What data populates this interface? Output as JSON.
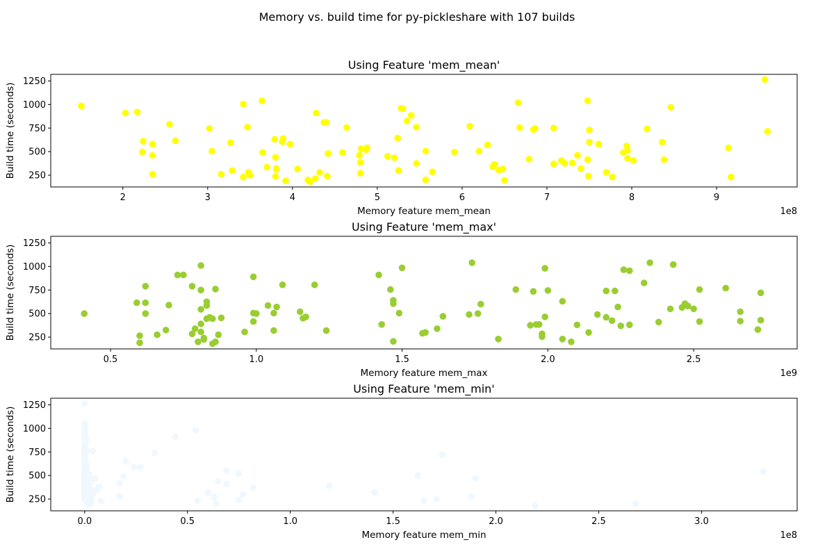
{
  "figure_title": "Memory vs. build time for py-pickleshare with 107 builds",
  "chart_data": [
    {
      "type": "scatter",
      "title": "Using Feature 'mem_mean'",
      "xlabel": "Memory feature mem_mean",
      "ylabel": "Build time (seconds)",
      "x_offset_label": "1e8",
      "x_scale": 100000000,
      "xlim": [
        1.15,
        9.95
      ],
      "ylim": [
        125,
        1320
      ],
      "xticks": [
        2,
        3,
        4,
        5,
        6,
        7,
        8,
        9
      ],
      "xtick_labels": [
        "2",
        "3",
        "4",
        "5",
        "6",
        "7",
        "8",
        "9"
      ],
      "yticks": [
        250,
        500,
        750,
        1000,
        1250
      ],
      "ytick_labels": [
        "250",
        "500",
        "750",
        "1000",
        "1250"
      ],
      "color": "#ffff00",
      "grid": false,
      "x": [
        1.51,
        2.03,
        2.17,
        2.24,
        2.23,
        2.35,
        2.35,
        2.35,
        2.55,
        2.62,
        3.02,
        3.05,
        3.16,
        3.27,
        3.29,
        3.42,
        3.42,
        3.47,
        3.48,
        3.5,
        3.65,
        3.64,
        3.7,
        3.79,
        3.8,
        3.8,
        3.81,
        3.81,
        3.88,
        3.89,
        3.92,
        3.97,
        4.06,
        4.18,
        4.21,
        4.27,
        4.28,
        4.32,
        4.37,
        4.4,
        4.41,
        4.42,
        4.42,
        4.59,
        4.64,
        4.79,
        4.8,
        4.8,
        4.81,
        4.87,
        4.88,
        5.12,
        5.2,
        5.24,
        5.25,
        5.28,
        5.3,
        5.35,
        5.4,
        5.46,
        5.46,
        5.57,
        5.57,
        5.65,
        5.91,
        6.09,
        6.2,
        6.3,
        6.36,
        6.38,
        6.43,
        6.48,
        6.5,
        6.66,
        6.68,
        6.79,
        6.84,
        6.86,
        7.08,
        7.08,
        7.17,
        7.21,
        7.3,
        7.36,
        7.4,
        7.48,
        7.5,
        7.49,
        7.48,
        7.5,
        7.61,
        7.7,
        7.77,
        7.9,
        7.94,
        7.95,
        7.95,
        8.02,
        8.18,
        8.36,
        8.38,
        8.46,
        9.14,
        9.17,
        9.57,
        9.6,
        1.51
      ],
      "y": [
        985,
        910,
        920,
        610,
        495,
        580,
        460,
        260,
        790,
        615,
        745,
        505,
        260,
        595,
        300,
        230,
        1005,
        760,
        280,
        250,
        490,
        1040,
        335,
        630,
        235,
        440,
        320,
        310,
        605,
        640,
        190,
        580,
        315,
        200,
        180,
        215,
        910,
        280,
        810,
        810,
        240,
        480,
        480,
        490,
        755,
        460,
        385,
        270,
        530,
        520,
        540,
        450,
        435,
        645,
        300,
        960,
        955,
        825,
        885,
        760,
        375,
        505,
        200,
        285,
        495,
        770,
        505,
        570,
        340,
        365,
        305,
        315,
        195,
        1020,
        755,
        420,
        735,
        745,
        370,
        750,
        405,
        375,
        380,
        460,
        320,
        1040,
        730,
        240,
        415,
        600,
        580,
        280,
        230,
        490,
        560,
        510,
        430,
        405,
        740,
        600,
        415,
        970,
        540,
        230,
        1265,
        715,
        985
      ]
    },
    {
      "type": "scatter",
      "title": "Using Feature 'mem_max'",
      "xlabel": "Memory feature mem_max",
      "ylabel": "Build time (seconds)",
      "x_offset_label": "1e9",
      "x_scale": 1000000000,
      "xlim": [
        0.295,
        2.855
      ],
      "ylim": [
        125,
        1320
      ],
      "xticks": [
        0.5,
        1.0,
        1.5,
        2.0,
        2.5
      ],
      "xtick_labels": [
        "0.5",
        "1.0",
        "1.5",
        "2.0",
        "2.5"
      ],
      "yticks": [
        250,
        500,
        750,
        1000,
        1250
      ],
      "ytick_labels": [
        "250",
        "500",
        "750",
        "1000",
        "1250"
      ],
      "color": "#9acd32",
      "grid": false,
      "x": [
        0.41,
        0.59,
        0.6,
        0.6,
        0.62,
        0.62,
        0.66,
        0.69,
        0.7,
        0.73,
        0.75,
        0.78,
        0.79,
        0.8,
        0.81,
        0.81,
        0.81,
        0.83,
        0.82,
        0.83,
        0.84,
        0.86,
        0.86,
        0.85,
        0.88,
        0.87,
        0.82,
        0.96,
        0.99,
        0.99,
        1.0,
        1.04,
        1.06,
        1.09,
        1.15,
        1.17,
        1.2,
        1.24,
        1.42,
        1.43,
        1.46,
        1.47,
        1.47,
        1.47,
        1.49,
        1.5,
        1.57,
        1.62,
        1.64,
        1.73,
        1.74,
        1.76,
        1.77,
        1.83,
        1.89,
        1.94,
        1.95,
        1.96,
        1.98,
        1.98,
        1.99,
        1.99,
        2.05,
        2.05,
        2.08,
        2.1,
        2.14,
        2.17,
        2.2,
        2.2,
        2.22,
        2.23,
        2.24,
        2.25,
        2.26,
        2.28,
        2.28,
        2.33,
        2.35,
        2.38,
        2.42,
        2.43,
        2.46,
        2.47,
        2.48,
        2.5,
        2.52,
        2.52,
        2.61,
        2.66,
        2.66,
        2.72,
        2.73,
        2.73,
        0.99,
        1.06,
        0.62,
        0.81,
        0.81,
        0.83,
        0.78,
        0.85,
        1.07,
        1.16,
        1.97,
        2.0,
        1.58
      ],
      "y": [
        500,
        615,
        265,
        190,
        790,
        615,
        275,
        325,
        590,
        910,
        910,
        285,
        340,
        200,
        1010,
        750,
        545,
        585,
        240,
        625,
        460,
        760,
        200,
        445,
        455,
        275,
        225,
        305,
        890,
        505,
        500,
        585,
        320,
        805,
        520,
        465,
        805,
        320,
        910,
        385,
        755,
        640,
        605,
        205,
        505,
        985,
        290,
        340,
        470,
        490,
        1040,
        500,
        600,
        230,
        755,
        375,
        735,
        385,
        285,
        255,
        465,
        980,
        230,
        630,
        200,
        380,
        300,
        490,
        740,
        460,
        425,
        740,
        570,
        370,
        965,
        955,
        380,
        825,
        1040,
        410,
        550,
        1020,
        565,
        605,
        580,
        550,
        755,
        415,
        770,
        520,
        420,
        330,
        720,
        430,
        415,
        505,
        500,
        305,
        390,
        445,
        790,
        180,
        570,
        450,
        385,
        745,
        300
      ]
    },
    {
      "type": "scatter",
      "title": "Using Feature 'mem_min'",
      "xlabel": "Memory feature mem_min",
      "ylabel": "Build time (seconds)",
      "x_offset_label": "1e8",
      "x_scale": 100000000,
      "xlim": [
        -0.165,
        3.465
      ],
      "ylim": [
        125,
        1320
      ],
      "xticks": [
        0.0,
        0.5,
        1.0,
        1.5,
        2.0,
        2.5,
        3.0
      ],
      "xtick_labels": [
        "0.0",
        "0.5",
        "1.0",
        "1.5",
        "2.0",
        "2.5",
        "3.0"
      ],
      "yticks": [
        250,
        500,
        750,
        1000,
        1250
      ],
      "ytick_labels": [
        "250",
        "500",
        "750",
        "1000",
        "1250"
      ],
      "color": "#f0f8ff",
      "grid": false,
      "x": [
        0.0,
        0.0,
        0.0,
        0.0,
        0.0,
        0.0,
        0.0,
        0.0,
        0.0,
        0.0,
        0.0,
        0.0,
        0.0,
        0.0,
        0.0,
        0.0,
        0.0,
        0.0,
        0.0,
        0.0,
        0.0,
        0.0,
        0.0,
        0.0,
        0.0,
        0.0,
        0.0,
        0.0,
        0.0,
        0.0,
        0.01,
        0.01,
        0.01,
        0.01,
        0.02,
        0.02,
        0.02,
        0.02,
        0.03,
        0.03,
        0.03,
        0.04,
        0.04,
        0.05,
        0.06,
        0.07,
        0.08,
        0.17,
        0.17,
        0.19,
        0.2,
        0.24,
        0.27,
        0.34,
        0.44,
        0.54,
        0.55,
        0.6,
        0.63,
        0.64,
        0.65,
        0.69,
        0.69,
        0.75,
        0.75,
        0.77,
        0.82,
        1.19,
        1.41,
        1.62,
        1.65,
        1.71,
        1.74,
        1.88,
        1.9,
        2.19,
        2.68,
        3.3,
        0.0,
        0.0,
        0.0,
        0.0,
        0.0,
        0.0,
        0.0,
        0.0,
        0.0,
        0.0,
        0.01,
        0.01,
        0.01,
        0.02,
        0.02,
        0.02,
        0.03,
        0.03,
        0.0,
        0.0,
        0.0,
        0.0,
        0.0,
        0.0,
        0.0,
        0.0,
        0.01,
        0.01,
        0.02
      ],
      "y": [
        1265,
        1050,
        1020,
        990,
        960,
        930,
        890,
        820,
        760,
        730,
        700,
        650,
        620,
        590,
        560,
        540,
        520,
        500,
        480,
        460,
        440,
        420,
        400,
        380,
        360,
        340,
        320,
        300,
        280,
        260,
        880,
        760,
        600,
        540,
        510,
        470,
        420,
        380,
        250,
        200,
        450,
        760,
        300,
        470,
        350,
        380,
        230,
        420,
        280,
        490,
        650,
        590,
        590,
        740,
        910,
        980,
        230,
        320,
        270,
        200,
        440,
        410,
        550,
        240,
        520,
        300,
        370,
        390,
        320,
        500,
        230,
        250,
        720,
        280,
        470,
        180,
        200,
        540,
        1000,
        900,
        780,
        700,
        640,
        600,
        560,
        520,
        490,
        450,
        610,
        580,
        430,
        520,
        480,
        400,
        350,
        330,
        520,
        470,
        420,
        380,
        330,
        300,
        270,
        240,
        300,
        220,
        190
      ]
    }
  ]
}
